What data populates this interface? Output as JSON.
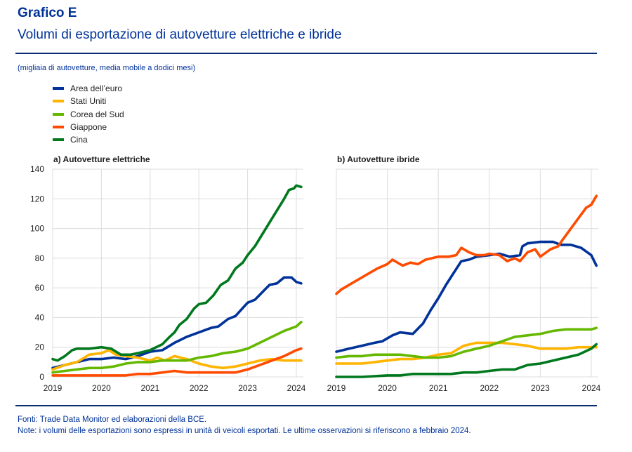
{
  "header": {
    "title": "Grafico E",
    "subtitle": "Volumi di esportazione di autovetture elettriche e ibride",
    "units": "(migliaia di autovetture, media mobile a dodici mesi)"
  },
  "footer": {
    "sources": "Fonti: Trade Data Monitor ed elaborazioni della BCE.",
    "notes": "Note: i volumi delle esportazioni sono espressi in unità di veicoli esportati. Le ultime osservazioni si riferiscono a febbraio 2024."
  },
  "legend": [
    {
      "name": "Area dell’euro",
      "color": "#003299"
    },
    {
      "name": "Stati Uniti",
      "color": "#FFB400"
    },
    {
      "name": "Corea del Sud",
      "color": "#65B800"
    },
    {
      "name": "Giappone",
      "color": "#FF4B00"
    },
    {
      "name": "Cina",
      "color": "#00781E"
    }
  ],
  "chart_data": [
    {
      "type": "line",
      "title": "a) Autovetture elettriche",
      "xlabel": "",
      "ylabel": "",
      "ylim": [
        0,
        140
      ],
      "yticks": [
        "0",
        "20",
        "40",
        "60",
        "80",
        "100",
        "120",
        "140"
      ],
      "xlim": [
        2019,
        2024.2
      ],
      "xticks": [
        "2019",
        "2020",
        "2021",
        "2022",
        "2023",
        "2024"
      ],
      "grid": true,
      "series": [
        {
          "name": "Area dell’euro",
          "color": "#003299",
          "x": [
            2019,
            2019.25,
            2019.5,
            2019.75,
            2020,
            2020.25,
            2020.5,
            2020.75,
            2021,
            2021.25,
            2021.5,
            2021.75,
            2022,
            2022.25,
            2022.4,
            2022.6,
            2022.75,
            2023,
            2023.15,
            2023.3,
            2023.45,
            2023.6,
            2023.75,
            2023.9,
            2024,
            2024.1
          ],
          "y": [
            6,
            8,
            10,
            12,
            12,
            13,
            12,
            14,
            17,
            18,
            23,
            27,
            30,
            33,
            34,
            39,
            41,
            50,
            52,
            57,
            62,
            63,
            67,
            67,
            64,
            63
          ]
        },
        {
          "name": "Stati Uniti",
          "color": "#FFB400",
          "x": [
            2019,
            2019.25,
            2019.5,
            2019.75,
            2020,
            2020.15,
            2020.3,
            2020.5,
            2020.75,
            2021,
            2021.15,
            2021.3,
            2021.5,
            2021.75,
            2022,
            2022.25,
            2022.5,
            2022.75,
            2023,
            2023.25,
            2023.5,
            2023.75,
            2024,
            2024.1
          ],
          "y": [
            5,
            8,
            10,
            15,
            16,
            18,
            15,
            14,
            13,
            11,
            13,
            11,
            14,
            12,
            9,
            7,
            6,
            7,
            9,
            11,
            12,
            11,
            11,
            11
          ]
        },
        {
          "name": "Corea del Sud",
          "color": "#65B800",
          "x": [
            2019,
            2019.25,
            2019.5,
            2019.75,
            2020,
            2020.25,
            2020.5,
            2020.75,
            2021,
            2021.25,
            2021.5,
            2021.75,
            2022,
            2022.25,
            2022.5,
            2022.75,
            2023,
            2023.25,
            2023.5,
            2023.75,
            2024,
            2024.1
          ],
          "y": [
            3,
            4,
            5,
            6,
            6,
            7,
            9,
            10,
            10,
            11,
            11,
            11,
            13,
            14,
            16,
            17,
            19,
            23,
            27,
            31,
            34,
            37
          ]
        },
        {
          "name": "Giappone",
          "color": "#FF4B00",
          "x": [
            2019,
            2019.5,
            2020,
            2020.5,
            2020.75,
            2021,
            2021.25,
            2021.5,
            2021.75,
            2022,
            2022.5,
            2022.75,
            2023,
            2023.25,
            2023.5,
            2023.75,
            2024,
            2024.1
          ],
          "y": [
            1,
            1,
            1,
            1,
            2,
            2,
            3,
            4,
            3,
            3,
            3,
            3,
            5,
            8,
            11,
            14,
            18,
            19
          ]
        },
        {
          "name": "Cina",
          "color": "#00781E",
          "x": [
            2019,
            2019.1,
            2019.25,
            2019.4,
            2019.5,
            2019.75,
            2020,
            2020.2,
            2020.4,
            2020.6,
            2020.75,
            2021,
            2021.25,
            2021.4,
            2021.5,
            2021.6,
            2021.75,
            2021.9,
            2022,
            2022.15,
            2022.3,
            2022.45,
            2022.6,
            2022.75,
            2022.9,
            2023,
            2023.15,
            2023.3,
            2023.45,
            2023.6,
            2023.75,
            2023.85,
            2023.95,
            2024,
            2024.1
          ],
          "y": [
            12,
            11,
            14,
            18,
            19,
            19,
            20,
            19,
            15,
            15,
            16,
            18,
            22,
            27,
            30,
            35,
            39,
            46,
            49,
            50,
            55,
            62,
            65,
            73,
            77,
            82,
            88,
            96,
            104,
            112,
            120,
            126,
            127,
            129,
            128
          ]
        }
      ]
    },
    {
      "type": "line",
      "title": "b) Autovetture ibride",
      "xlabel": "",
      "ylabel": "",
      "ylim": [
        0,
        140
      ],
      "xlim": [
        2019,
        2024.2
      ],
      "xticks": [
        "2019",
        "2020",
        "2021",
        "2022",
        "2023",
        "2024"
      ],
      "grid": true,
      "series": [
        {
          "name": "Area dell’euro",
          "color": "#003299",
          "x": [
            2019,
            2019.25,
            2019.5,
            2019.75,
            2019.9,
            2020.1,
            2020.25,
            2020.5,
            2020.7,
            2020.85,
            2021,
            2021.15,
            2021.3,
            2021.45,
            2021.6,
            2021.75,
            2022,
            2022.2,
            2022.4,
            2022.6,
            2022.65,
            2022.75,
            2023,
            2023.25,
            2023.4,
            2023.6,
            2023.8,
            2024,
            2024.1
          ],
          "y": [
            17,
            19,
            21,
            23,
            24,
            28,
            30,
            29,
            36,
            45,
            53,
            62,
            70,
            78,
            79,
            81,
            82,
            83,
            81,
            82,
            88,
            90,
            91,
            91,
            89,
            89,
            87,
            82,
            75
          ]
        },
        {
          "name": "Stati Uniti",
          "color": "#FFB400",
          "x": [
            2019,
            2019.5,
            2019.75,
            2020,
            2020.25,
            2020.5,
            2020.75,
            2021,
            2021.25,
            2021.5,
            2021.75,
            2022,
            2022.25,
            2022.5,
            2022.75,
            2023,
            2023.25,
            2023.5,
            2023.75,
            2024,
            2024.1
          ],
          "y": [
            9,
            9,
            10,
            11,
            12,
            12,
            13,
            15,
            16,
            21,
            23,
            23,
            23,
            22,
            21,
            19,
            19,
            19,
            20,
            20,
            20
          ]
        },
        {
          "name": "Corea del Sud",
          "color": "#65B800",
          "x": [
            2019,
            2019.25,
            2019.5,
            2019.75,
            2020,
            2020.25,
            2020.5,
            2020.75,
            2021,
            2021.25,
            2021.5,
            2021.75,
            2022,
            2022.25,
            2022.5,
            2022.75,
            2023,
            2023.25,
            2023.5,
            2023.75,
            2024,
            2024.1
          ],
          "y": [
            13,
            14,
            14,
            15,
            15,
            15,
            14,
            13,
            13,
            14,
            17,
            19,
            21,
            24,
            27,
            28,
            29,
            31,
            32,
            32,
            32,
            33
          ]
        },
        {
          "name": "Giappone",
          "color": "#FF4B00",
          "x": [
            2019,
            2019.1,
            2019.25,
            2019.4,
            2019.6,
            2019.8,
            2020,
            2020.1,
            2020.3,
            2020.45,
            2020.6,
            2020.75,
            2021,
            2021.2,
            2021.35,
            2021.45,
            2021.6,
            2021.75,
            2021.9,
            2022,
            2022.2,
            2022.35,
            2022.5,
            2022.6,
            2022.75,
            2022.9,
            2023,
            2023.2,
            2023.35,
            2023.45,
            2023.6,
            2023.75,
            2023.9,
            2024,
            2024.1
          ],
          "y": [
            56,
            59,
            62,
            65,
            69,
            73,
            76,
            79,
            75,
            77,
            76,
            79,
            81,
            81,
            82,
            87,
            84,
            82,
            82,
            83,
            82,
            78,
            80,
            78,
            84,
            86,
            81,
            86,
            88,
            93,
            100,
            107,
            114,
            116,
            122
          ]
        },
        {
          "name": "Cina",
          "color": "#00781E",
          "x": [
            2019,
            2019.5,
            2020,
            2020.25,
            2020.5,
            2020.75,
            2021,
            2021.25,
            2021.5,
            2021.75,
            2022,
            2022.25,
            2022.5,
            2022.75,
            2023,
            2023.25,
            2023.5,
            2023.75,
            2024,
            2024.1
          ],
          "y": [
            0,
            0,
            1,
            1,
            2,
            2,
            2,
            2,
            3,
            3,
            4,
            5,
            5,
            8,
            9,
            11,
            13,
            15,
            19,
            22
          ]
        }
      ]
    }
  ]
}
